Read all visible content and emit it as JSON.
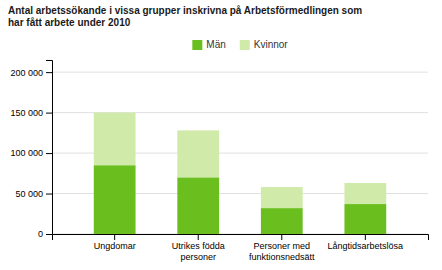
{
  "chart_data": {
    "type": "bar",
    "stacked": true,
    "title": "Antal arbetssökande i vissa grupper inskrivna på Arbetsförmedlingen som\nhar fått arbete under 2010",
    "categories": [
      "Ungdomar",
      "Utrikes födda\npersoner",
      "Personer med\nfunktionsnedsätt",
      "Långtidsarbetslösa"
    ],
    "series": [
      {
        "name": "Män",
        "color": "#6abf1e",
        "values": [
          85000,
          70000,
          32000,
          37000
        ]
      },
      {
        "name": "Kvinnor",
        "color": "#d0eaaa",
        "values": [
          65000,
          58000,
          26000,
          26000
        ]
      }
    ],
    "ylim": [
      0,
      215000
    ],
    "yticks": [
      0,
      {
        "value": 50000,
        "label": "50 000"
      },
      {
        "value": 100000,
        "label": "100 000"
      },
      {
        "value": 150000,
        "label": "150 000"
      },
      {
        "value": 200000,
        "label": "200 000"
      }
    ],
    "grid": true,
    "legend": "top"
  }
}
